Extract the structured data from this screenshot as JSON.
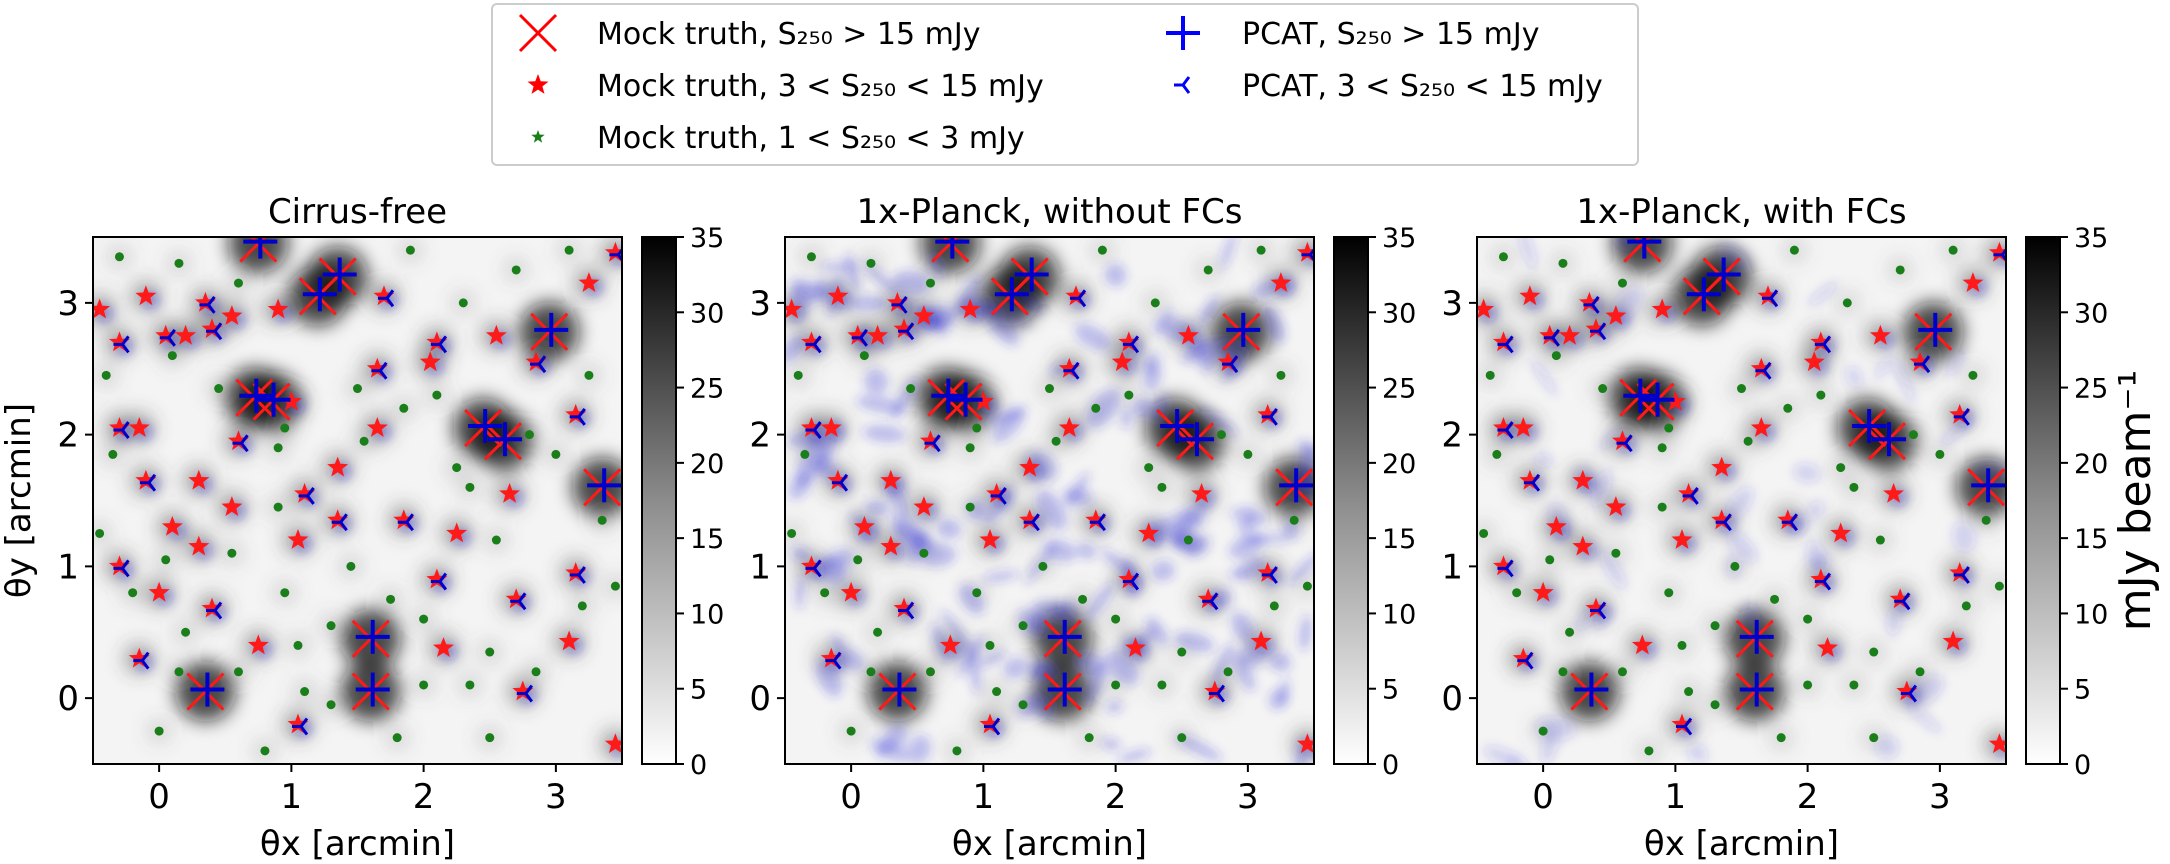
{
  "legend": {
    "entries": [
      {
        "label": "Mock truth, S₂₅₀ > 15 mJy",
        "marker": "x-large",
        "color": "#ff0000"
      },
      {
        "label": "Mock truth, 3 < S₂₅₀ < 15 mJy",
        "marker": "star",
        "color": "#ff0000"
      },
      {
        "label": "Mock truth, 1 < S₂₅₀ < 3 mJy",
        "marker": "star-small",
        "color": "#1a7f1a"
      },
      {
        "label": "PCAT, S₂₅₀ > 15 mJy",
        "marker": "plus-large",
        "color": "#0000ff"
      },
      {
        "label": "PCAT, 3 < S₂₅₀ < 15 mJy",
        "marker": "tri-left",
        "color": "#0000ff"
      }
    ]
  },
  "colorbar": {
    "label": "mJy beam⁻¹",
    "ticks": [
      "0",
      "5",
      "10",
      "15",
      "20",
      "25",
      "30",
      "35"
    ],
    "min": 0,
    "max": 35
  },
  "chart_data": [
    {
      "type": "heatmap",
      "title": "Cirrus-free",
      "xlabel": "θx [arcmin]",
      "ylabel": "θy [arcmin]",
      "xlim": [
        -0.5,
        3.5
      ],
      "ylim": [
        -0.5,
        3.5
      ],
      "xticks": [
        "0",
        "1",
        "2",
        "3"
      ],
      "yticks": [
        "0",
        "1",
        "2",
        "3"
      ],
      "cirrus": "none",
      "colorscale": {
        "min": 0,
        "max": 35,
        "cmap": "Greys"
      },
      "bright_sources": [
        [
          1.2,
          3.05
        ],
        [
          1.35,
          3.2
        ],
        [
          0.72,
          2.28
        ],
        [
          0.85,
          2.25
        ],
        [
          2.45,
          2.05
        ],
        [
          2.6,
          1.95
        ],
        [
          3.35,
          1.6
        ],
        [
          1.6,
          0.45
        ],
        [
          1.6,
          0.05
        ],
        [
          0.35,
          0.05
        ],
        [
          0.75,
          3.45
        ],
        [
          2.95,
          2.78
        ]
      ],
      "faint_sources": [
        [
          0.05,
          2.75
        ],
        [
          0.2,
          2.75
        ],
        [
          0.4,
          2.8
        ],
        [
          0.55,
          2.9
        ],
        [
          -0.3,
          2.7
        ],
        [
          1.0,
          2.25
        ],
        [
          -0.3,
          2.05
        ],
        [
          -0.15,
          2.05
        ],
        [
          0.6,
          1.95
        ],
        [
          1.35,
          1.75
        ],
        [
          1.1,
          1.55
        ],
        [
          1.65,
          2.05
        ],
        [
          2.1,
          2.7
        ],
        [
          2.55,
          2.75
        ],
        [
          3.15,
          2.15
        ],
        [
          0.3,
          1.65
        ],
        [
          -0.1,
          1.65
        ],
        [
          1.05,
          1.2
        ],
        [
          1.35,
          1.35
        ],
        [
          0.1,
          1.3
        ],
        [
          -0.3,
          1.0
        ],
        [
          0.3,
          1.15
        ],
        [
          0.4,
          0.68
        ],
        [
          0.75,
          0.4
        ],
        [
          1.05,
          -0.2
        ],
        [
          0.0,
          0.8
        ],
        [
          2.1,
          0.9
        ],
        [
          2.15,
          0.38
        ],
        [
          2.75,
          0.05
        ],
        [
          3.1,
          0.43
        ],
        [
          3.15,
          0.95
        ],
        [
          3.25,
          3.15
        ],
        [
          3.45,
          3.38
        ],
        [
          2.65,
          1.55
        ],
        [
          1.7,
          3.05
        ],
        [
          -0.1,
          3.05
        ],
        [
          0.35,
          3.0
        ],
        [
          0.9,
          2.95
        ],
        [
          1.65,
          2.5
        ],
        [
          2.05,
          2.55
        ],
        [
          2.85,
          2.55
        ],
        [
          -0.45,
          2.95
        ],
        [
          1.85,
          1.35
        ],
        [
          2.25,
          1.25
        ],
        [
          -0.15,
          0.3
        ],
        [
          3.45,
          -0.35
        ],
        [
          2.7,
          0.75
        ],
        [
          0.55,
          1.45
        ]
      ],
      "dim_sources": [
        [
          0.15,
          0.2
        ],
        [
          0.6,
          0.2
        ],
        [
          1.3,
          0.55
        ],
        [
          2.0,
          0.1
        ],
        [
          2.35,
          0.1
        ],
        [
          2.5,
          -0.3
        ],
        [
          2.0,
          0.6
        ],
        [
          3.2,
          0.7
        ],
        [
          3.35,
          1.35
        ],
        [
          3.45,
          0.85
        ],
        [
          2.35,
          1.6
        ],
        [
          2.25,
          1.75
        ],
        [
          1.55,
          1.95
        ],
        [
          1.85,
          2.2
        ],
        [
          0.95,
          2.05
        ],
        [
          0.45,
          2.35
        ],
        [
          0.1,
          2.6
        ],
        [
          -0.4,
          2.45
        ],
        [
          -0.35,
          1.85
        ],
        [
          0.9,
          1.45
        ],
        [
          0.55,
          1.1
        ],
        [
          0.05,
          1.05
        ],
        [
          -0.2,
          0.8
        ],
        [
          0.95,
          0.8
        ],
        [
          1.45,
          1.0
        ],
        [
          1.75,
          0.75
        ],
        [
          2.5,
          0.35
        ],
        [
          2.85,
          0.2
        ],
        [
          0.8,
          -0.4
        ],
        [
          0.0,
          -0.25
        ],
        [
          1.3,
          -0.05
        ],
        [
          1.8,
          -0.3
        ],
        [
          2.3,
          3.0
        ],
        [
          2.7,
          3.25
        ],
        [
          3.1,
          3.4
        ],
        [
          1.9,
          3.4
        ],
        [
          0.15,
          3.3
        ],
        [
          -0.3,
          3.35
        ],
        [
          0.6,
          3.15
        ],
        [
          1.5,
          2.35
        ],
        [
          2.8,
          2.0
        ],
        [
          3.0,
          1.85
        ],
        [
          2.1,
          2.3
        ],
        [
          1.05,
          0.4
        ],
        [
          0.2,
          0.5
        ],
        [
          0.9,
          1.9
        ],
        [
          3.25,
          2.45
        ],
        [
          2.55,
          1.2
        ],
        [
          -0.45,
          1.25
        ],
        [
          1.1,
          0.05
        ]
      ]
    },
    {
      "type": "heatmap",
      "title": "1x-Planck, without FCs",
      "xlabel": "θx [arcmin]",
      "ylabel": "",
      "xlim": [
        -0.5,
        3.5
      ],
      "ylim": [
        -0.5,
        3.5
      ],
      "xticks": [
        "0",
        "1",
        "2",
        "3"
      ],
      "yticks": [
        "0",
        "1",
        "2",
        "3"
      ],
      "cirrus": "strong",
      "colorscale": {
        "min": 0,
        "max": 35,
        "cmap": "Greys"
      }
    },
    {
      "type": "heatmap",
      "title": "1x-Planck, with FCs",
      "xlabel": "θx [arcmin]",
      "ylabel": "",
      "xlim": [
        -0.5,
        3.5
      ],
      "ylim": [
        -0.5,
        3.5
      ],
      "xticks": [
        "0",
        "1",
        "2",
        "3"
      ],
      "yticks": [
        "0",
        "1",
        "2",
        "3"
      ],
      "cirrus": "weak",
      "colorscale": {
        "min": 0,
        "max": 35,
        "cmap": "Greys"
      }
    }
  ]
}
